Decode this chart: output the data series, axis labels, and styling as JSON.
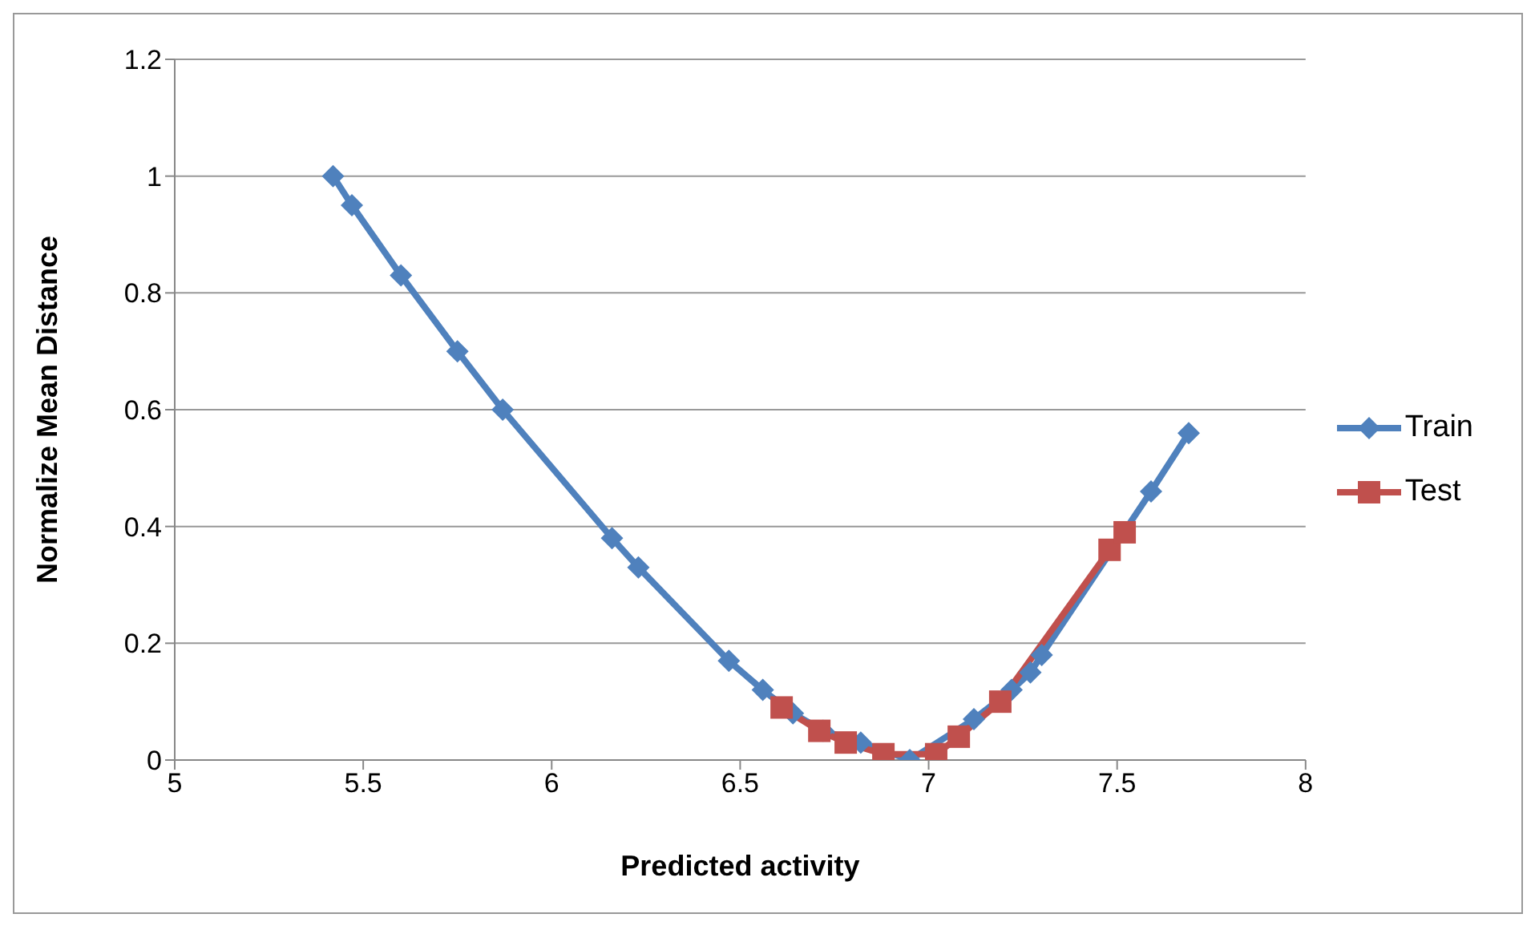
{
  "chart_data": {
    "type": "line",
    "xlabel": "Predicted activity",
    "ylabel": "Normalize Mean Distance",
    "xlim": [
      5,
      8
    ],
    "xticks": [
      5,
      5.5,
      6,
      6.5,
      7,
      7.5,
      8
    ],
    "ylim": [
      0,
      1.2
    ],
    "yticks": [
      0,
      0.2,
      0.4,
      0.6,
      0.8,
      1,
      1.2
    ],
    "grid": "y",
    "legend": "right",
    "line_style": "solid",
    "series": [
      {
        "name": "Train",
        "color": "#4f81bd",
        "marker": "diamond",
        "x": [
          5.42,
          5.47,
          5.6,
          5.75,
          5.87,
          6.16,
          6.23,
          6.47,
          6.56,
          6.64,
          6.72,
          6.82,
          6.95,
          7.12,
          7.22,
          7.27,
          7.3,
          7.59,
          7.69
        ],
        "values": [
          1.0,
          0.95,
          0.83,
          0.7,
          0.6,
          0.38,
          0.33,
          0.17,
          0.12,
          0.08,
          0.05,
          0.03,
          0.0,
          0.07,
          0.12,
          0.15,
          0.18,
          0.46,
          0.56
        ]
      },
      {
        "name": "Test",
        "color": "#c0504d",
        "marker": "square",
        "x": [
          6.61,
          6.71,
          6.78,
          6.88,
          7.02,
          7.08,
          7.19,
          7.48,
          7.52
        ],
        "values": [
          0.09,
          0.05,
          0.03,
          0.01,
          0.01,
          0.04,
          0.1,
          0.36,
          0.39
        ]
      }
    ]
  }
}
